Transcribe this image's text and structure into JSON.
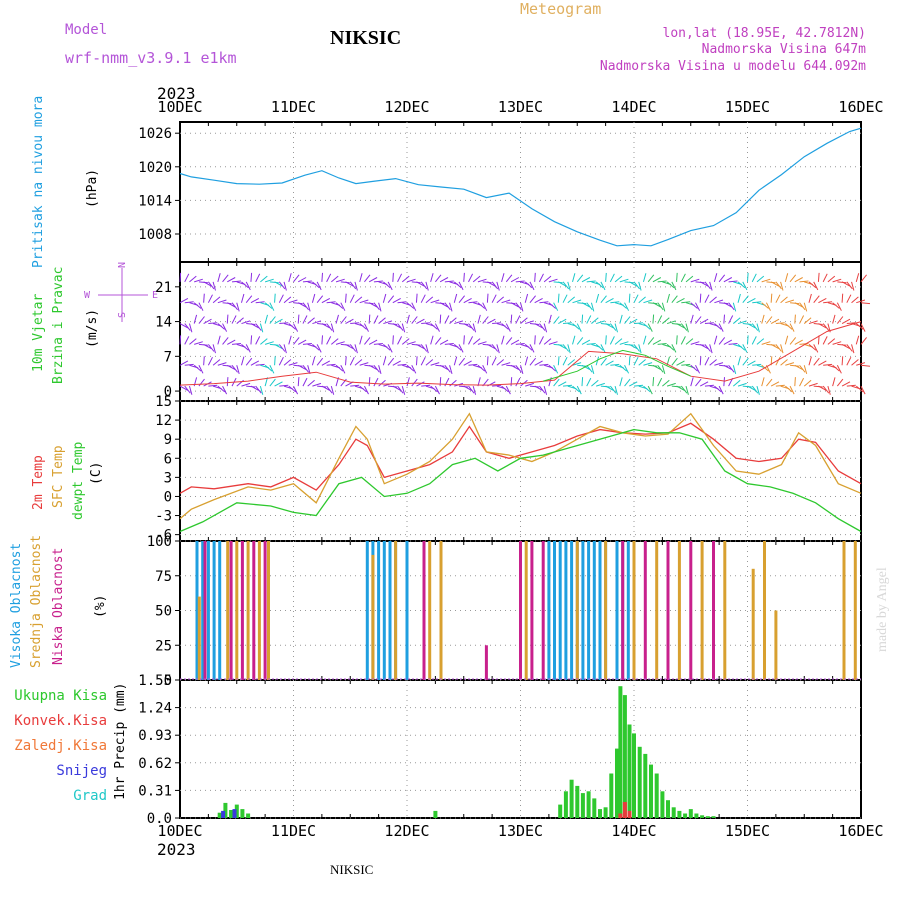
{
  "header": {
    "model_label": "Model",
    "model_value": "wrf-nmm_v3.9.1 e1km",
    "station": "NIKSIC",
    "meteogram": "Meteogram",
    "lonlat": "lon,lat (18.95E, 42.7812N)",
    "elevation": "Nadmorska Visina 647m",
    "model_elevation": "Nadmorska Visina u modelu 644.092m",
    "year_top": "2023",
    "year_bottom": "2023",
    "footer_station": "NIKSIC",
    "credit": "made by Angel"
  },
  "colors": {
    "pressure": "#1f9fe0",
    "temp2m": "#e83c3c",
    "sfc": "#d8a030",
    "dewpt": "#2ec82e",
    "wind_low": "#8a2be2",
    "wind_mid": "#18c8c8",
    "high_cloud": "#1f9fe0",
    "mid_cloud": "#d8a030",
    "low_cloud": "#c8208c",
    "total_precip": "#2ec82e",
    "conv_precip": "#e83c3c",
    "snow": "#3a3adc"
  },
  "chart_data": [
    {
      "type": "line",
      "panel": "pressure",
      "ylabel": [
        "Pritisak na nivou mora",
        "(hPa)"
      ],
      "x_categories": [
        "10DEC",
        "11DEC",
        "12DEC",
        "13DEC",
        "14DEC",
        "15DEC",
        "16DEC"
      ],
      "yticks": [
        1008,
        1014,
        1020,
        1026
      ],
      "ylim": [
        1003,
        1028
      ],
      "series": [
        {
          "color_key": "pressure",
          "x": [
            0,
            0.1,
            0.3,
            0.5,
            0.7,
            0.9,
            1.1,
            1.25,
            1.4,
            1.55,
            1.7,
            1.9,
            2.1,
            2.3,
            2.5,
            2.7,
            2.9,
            3.1,
            3.3,
            3.5,
            3.7,
            3.85,
            4.0,
            4.15,
            4.3,
            4.5,
            4.7,
            4.9,
            5.1,
            5.3,
            5.5,
            5.7,
            5.9,
            6.0
          ],
          "values": [
            1018.8,
            1018.2,
            1017.6,
            1017.0,
            1016.9,
            1017.1,
            1018.5,
            1019.3,
            1018.0,
            1017.0,
            1017.4,
            1017.9,
            1016.8,
            1016.4,
            1016.0,
            1014.5,
            1015.3,
            1012.5,
            1010.2,
            1008.4,
            1006.9,
            1005.9,
            1006.1,
            1005.9,
            1007.0,
            1008.6,
            1009.5,
            1011.8,
            1015.8,
            1018.6,
            1021.8,
            1024.2,
            1026.3,
            1026.9
          ]
        }
      ]
    },
    {
      "type": "line",
      "panel": "wind",
      "ylabel": [
        "10m Vjetar",
        "Brzina i Pravac",
        "(m/s)"
      ],
      "compass": [
        "N",
        "E",
        "W",
        "S"
      ],
      "yticks": [
        0,
        7,
        14,
        21
      ],
      "ylim": [
        -2,
        26
      ],
      "series": [
        {
          "color_key": "temp2m",
          "x": [
            0,
            0.3,
            0.6,
            0.9,
            1.2,
            1.5,
            1.8,
            2.1,
            2.4,
            2.7,
            3.0,
            3.3,
            3.6,
            3.9,
            4.2,
            4.5,
            4.8,
            5.1,
            5.4,
            5.7,
            6.0
          ],
          "values": [
            1.2,
            1.5,
            2.0,
            3.0,
            3.8,
            1.8,
            1.4,
            1.6,
            1.3,
            1.2,
            1.5,
            2.2,
            8.0,
            7.5,
            6.5,
            3.0,
            2.0,
            4.0,
            8.0,
            12.0,
            14.0
          ]
        },
        {
          "color_key": "dewpt",
          "x": [
            3.2,
            3.5,
            3.7,
            3.9,
            4.1,
            4.3,
            4.5
          ],
          "values": [
            2.0,
            4.0,
            6.5,
            8.2,
            7.2,
            5.0,
            3.0
          ]
        }
      ]
    },
    {
      "type": "line",
      "panel": "temperature",
      "ylabel": [
        "2m Temp",
        "SFC Temp",
        "dewpt Temp",
        "(C)"
      ],
      "yticks": [
        -6,
        -3,
        0,
        3,
        6,
        9,
        12,
        15
      ],
      "ylim": [
        -7,
        15
      ],
      "series": [
        {
          "name": "2m Temp",
          "color_key": "temp2m",
          "x": [
            0,
            0.1,
            0.3,
            0.6,
            0.8,
            1.0,
            1.2,
            1.4,
            1.55,
            1.65,
            1.8,
            2.0,
            2.2,
            2.4,
            2.55,
            2.7,
            2.9,
            3.1,
            3.3,
            3.5,
            3.7,
            3.9,
            4.1,
            4.3,
            4.5,
            4.7,
            4.9,
            5.1,
            5.3,
            5.45,
            5.6,
            5.8,
            6.0
          ],
          "values": [
            0.5,
            1.5,
            1.2,
            2.0,
            1.5,
            3.0,
            1.0,
            5.0,
            9.0,
            8.0,
            3.0,
            4.0,
            5.0,
            7.0,
            11.0,
            7.0,
            6.0,
            7.0,
            8.0,
            9.5,
            10.5,
            10.0,
            9.8,
            10.0,
            11.5,
            9.0,
            6.0,
            5.5,
            6.0,
            9.0,
            8.5,
            4.0,
            2.0
          ]
        },
        {
          "name": "SFC Temp",
          "color_key": "sfc",
          "x": [
            0,
            0.1,
            0.3,
            0.6,
            0.8,
            1.0,
            1.2,
            1.4,
            1.55,
            1.65,
            1.8,
            2.0,
            2.2,
            2.4,
            2.55,
            2.7,
            2.9,
            3.1,
            3.3,
            3.5,
            3.7,
            3.9,
            4.1,
            4.3,
            4.5,
            4.7,
            4.9,
            5.1,
            5.3,
            5.45,
            5.6,
            5.8,
            6.0
          ],
          "values": [
            -3.5,
            -2.0,
            -0.5,
            1.5,
            1.0,
            2.0,
            -1.0,
            6.0,
            11.0,
            9.0,
            2.0,
            3.5,
            5.5,
            9.0,
            13.0,
            7.0,
            6.5,
            5.5,
            7.0,
            9.0,
            11.0,
            10.0,
            9.5,
            9.8,
            13.0,
            8.0,
            4.0,
            3.5,
            5.0,
            10.0,
            8.0,
            2.0,
            0.5
          ]
        },
        {
          "name": "dewpt Temp",
          "color_key": "dewpt",
          "x": [
            0,
            0.2,
            0.5,
            0.8,
            1.0,
            1.2,
            1.4,
            1.6,
            1.8,
            2.0,
            2.2,
            2.4,
            2.6,
            2.8,
            3.0,
            3.2,
            3.4,
            3.6,
            3.8,
            4.0,
            4.2,
            4.4,
            4.6,
            4.8,
            5.0,
            5.2,
            5.4,
            5.6,
            5.8,
            6.0
          ],
          "values": [
            -5.5,
            -4.0,
            -1.0,
            -1.5,
            -2.5,
            -3.0,
            2.0,
            3.0,
            0.0,
            0.5,
            2.0,
            5.0,
            6.0,
            4.0,
            6.0,
            6.5,
            7.5,
            8.5,
            9.5,
            10.5,
            10.0,
            10.0,
            9.0,
            4.0,
            2.0,
            1.5,
            0.5,
            -1.0,
            -3.5,
            -5.5
          ]
        }
      ]
    },
    {
      "type": "bar",
      "panel": "cloud",
      "ylabel": [
        "Visoka Oblacnost",
        "Srednja Oblacnost",
        "Niska Oblacnost",
        "(%)"
      ],
      "yticks": [
        0,
        25,
        50,
        75,
        100
      ],
      "ylim": [
        0,
        100
      ],
      "series": [
        {
          "name": "Visoka Oblacnost",
          "color_key": "high_cloud",
          "x": [
            0.15,
            0.2,
            0.25,
            0.3,
            0.35,
            1.65,
            1.7,
            1.75,
            1.8,
            1.85,
            1.9,
            2.0,
            3.25,
            3.3,
            3.35,
            3.4,
            3.45,
            3.5,
            3.55,
            3.6,
            3.65,
            3.7,
            3.75,
            3.85,
            3.9,
            3.95,
            4.0
          ],
          "values": [
            100,
            100,
            100,
            100,
            100,
            100,
            100,
            100,
            100,
            100,
            100,
            100,
            100,
            100,
            100,
            100,
            100,
            100,
            100,
            100,
            100,
            100,
            100,
            100,
            100,
            100,
            100
          ]
        },
        {
          "name": "Srednja Oblacnost",
          "color_key": "mid_cloud",
          "x": [
            0.17,
            0.42,
            0.5,
            0.6,
            0.7,
            0.78,
            1.7,
            1.9,
            2.2,
            2.3,
            3.05,
            3.5,
            3.75,
            4.0,
            4.2,
            4.4,
            4.6,
            4.8,
            5.05,
            5.15,
            5.25,
            5.85,
            5.95
          ],
          "values": [
            60,
            100,
            100,
            100,
            100,
            100,
            90,
            100,
            100,
            100,
            100,
            100,
            100,
            100,
            100,
            100,
            100,
            100,
            80,
            100,
            50,
            100,
            100
          ]
        },
        {
          "name": "Niska Oblacnost",
          "color_key": "low_cloud",
          "x": [
            0.22,
            0.45,
            0.55,
            0.65,
            0.75,
            2.15,
            2.7,
            3.0,
            3.1,
            3.2,
            3.9,
            4.1,
            4.3,
            4.5,
            4.7
          ],
          "values": [
            100,
            100,
            100,
            100,
            100,
            100,
            25,
            100,
            100,
            100,
            100,
            100,
            100,
            100,
            100
          ]
        }
      ]
    },
    {
      "type": "bar",
      "panel": "precip",
      "ylabel": [
        "1hr Precip (mm)"
      ],
      "legend": [
        "Ukupna Kisa",
        "Konvek.Kisa",
        "Zaledj.Kisa",
        "Snijeg",
        "Grad"
      ],
      "x_categories": [
        "10DEC",
        "11DEC",
        "12DEC",
        "13DEC",
        "14DEC",
        "15DEC",
        "16DEC"
      ],
      "yticks": [
        0,
        0.31,
        0.62,
        0.93,
        1.24,
        1.55
      ],
      "ylim": [
        0,
        1.55
      ],
      "series": [
        {
          "name": "Ukupna Kisa",
          "color_key": "total_precip",
          "x": [
            0.35,
            0.4,
            0.45,
            0.5,
            0.55,
            0.6,
            2.25,
            3.35,
            3.4,
            3.45,
            3.5,
            3.55,
            3.6,
            3.65,
            3.7,
            3.75,
            3.8,
            3.85,
            3.88,
            3.92,
            3.96,
            4.0,
            4.05,
            4.1,
            4.15,
            4.2,
            4.25,
            4.3,
            4.35,
            4.4,
            4.45,
            4.5,
            4.55,
            4.6,
            4.65,
            4.7
          ],
          "values": [
            0.06,
            0.17,
            0.09,
            0.15,
            0.1,
            0.05,
            0.08,
            0.15,
            0.3,
            0.43,
            0.36,
            0.28,
            0.3,
            0.22,
            0.1,
            0.12,
            0.5,
            0.78,
            1.48,
            1.38,
            1.05,
            0.95,
            0.8,
            0.72,
            0.6,
            0.5,
            0.3,
            0.2,
            0.12,
            0.08,
            0.05,
            0.1,
            0.05,
            0.03,
            0.02,
            0.02
          ]
        },
        {
          "name": "Konvek.Kisa",
          "color_key": "conv_precip",
          "x": [
            3.88,
            3.92,
            3.96
          ],
          "values": [
            0.05,
            0.18,
            0.08
          ]
        },
        {
          "name": "Snijeg",
          "color_key": "snow",
          "x": [
            0.38,
            0.48
          ],
          "values": [
            0.08,
            0.1
          ]
        }
      ]
    }
  ]
}
